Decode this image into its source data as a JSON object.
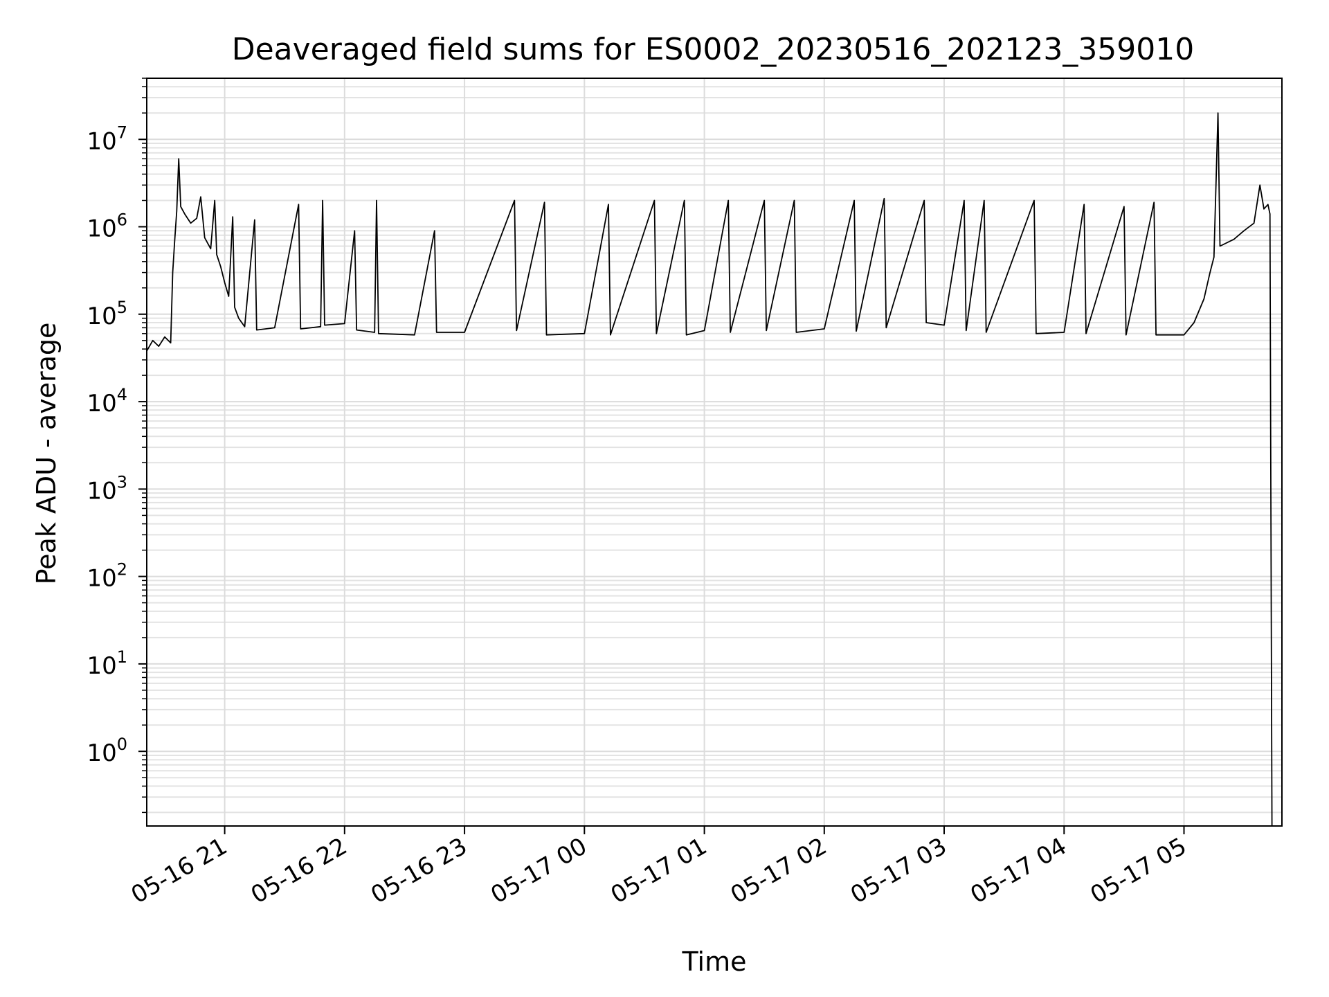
{
  "chart_data": {
    "type": "line",
    "title": "Deaveraged field sums for ES0002_20230516_202123_359010",
    "xlabel": "Time",
    "ylabel": "Peak ADU - average",
    "y_scale": "log",
    "ylim": [
      0.14,
      50000000
    ],
    "xlim": [
      "2023-05-16 20:21",
      "2023-05-17 05:49"
    ],
    "grid": true,
    "x_ticks": [
      {
        "t": "2023-05-16 21:00",
        "label": "05-16 21"
      },
      {
        "t": "2023-05-16 22:00",
        "label": "05-16 22"
      },
      {
        "t": "2023-05-16 23:00",
        "label": "05-16 23"
      },
      {
        "t": "2023-05-17 00:00",
        "label": "05-17 00"
      },
      {
        "t": "2023-05-17 01:00",
        "label": "05-17 01"
      },
      {
        "t": "2023-05-17 02:00",
        "label": "05-17 02"
      },
      {
        "t": "2023-05-17 03:00",
        "label": "05-17 03"
      },
      {
        "t": "2023-05-17 04:00",
        "label": "05-17 04"
      },
      {
        "t": "2023-05-17 05:00",
        "label": "05-17 05"
      }
    ],
    "y_ticks": [
      {
        "value": 1,
        "base": "10",
        "exp": "0"
      },
      {
        "value": 10,
        "base": "10",
        "exp": "1"
      },
      {
        "value": 100,
        "base": "10",
        "exp": "2"
      },
      {
        "value": 1000,
        "base": "10",
        "exp": "3"
      },
      {
        "value": 10000,
        "base": "10",
        "exp": "4"
      },
      {
        "value": 100000,
        "base": "10",
        "exp": "5"
      },
      {
        "value": 1000000,
        "base": "10",
        "exp": "6"
      },
      {
        "value": 10000000,
        "base": "10",
        "exp": "7"
      }
    ],
    "series": [
      {
        "color": "#000000",
        "points": [
          [
            "2023-05-16 20:21",
            38000
          ],
          [
            "2023-05-16 20:24",
            50000
          ],
          [
            "2023-05-16 20:27",
            43000
          ],
          [
            "2023-05-16 20:30",
            55000
          ],
          [
            "2023-05-16 20:33",
            47000
          ],
          [
            "2023-05-16 20:34",
            300000
          ],
          [
            "2023-05-16 20:35",
            700000
          ],
          [
            "2023-05-16 20:36",
            1500000
          ],
          [
            "2023-05-16 20:37",
            6000000
          ],
          [
            "2023-05-16 20:38",
            1700000
          ],
          [
            "2023-05-16 20:40",
            1400000
          ],
          [
            "2023-05-16 20:43",
            1100000
          ],
          [
            "2023-05-16 20:46",
            1250000
          ],
          [
            "2023-05-16 20:48",
            2200000
          ],
          [
            "2023-05-16 20:50",
            750000
          ],
          [
            "2023-05-16 20:53",
            560000
          ],
          [
            "2023-05-16 20:55",
            2000000
          ],
          [
            "2023-05-16 20:56",
            480000
          ],
          [
            "2023-05-16 20:58",
            350000
          ],
          [
            "2023-05-16 21:00",
            230000
          ],
          [
            "2023-05-16 21:02",
            160000
          ],
          [
            "2023-05-16 21:04",
            1300000
          ],
          [
            "2023-05-16 21:05",
            120000
          ],
          [
            "2023-05-16 21:07",
            90000
          ],
          [
            "2023-05-16 21:10",
            72000
          ],
          [
            "2023-05-16 21:15",
            1200000
          ],
          [
            "2023-05-16 21:16",
            66000
          ],
          [
            "2023-05-16 21:25",
            70000
          ],
          [
            "2023-05-16 21:37",
            1800000
          ],
          [
            "2023-05-16 21:38",
            68000
          ],
          [
            "2023-05-16 21:48",
            72000
          ],
          [
            "2023-05-16 21:49",
            2000000
          ],
          [
            "2023-05-16 21:50",
            75000
          ],
          [
            "2023-05-16 22:00",
            78000
          ],
          [
            "2023-05-16 22:05",
            900000
          ],
          [
            "2023-05-16 22:06",
            66000
          ],
          [
            "2023-05-16 22:15",
            62000
          ],
          [
            "2023-05-16 22:16",
            2000000
          ],
          [
            "2023-05-16 22:17",
            60000
          ],
          [
            "2023-05-16 22:35",
            58000
          ],
          [
            "2023-05-16 22:45",
            900000
          ],
          [
            "2023-05-16 22:46",
            62000
          ],
          [
            "2023-05-16 23:00",
            62000
          ],
          [
            "2023-05-16 23:25",
            2000000
          ],
          [
            "2023-05-16 23:26",
            65000
          ],
          [
            "2023-05-16 23:40",
            1900000
          ],
          [
            "2023-05-16 23:41",
            58000
          ],
          [
            "2023-05-17 00:00",
            60000
          ],
          [
            "2023-05-17 00:12",
            1800000
          ],
          [
            "2023-05-17 00:13",
            58000
          ],
          [
            "2023-05-17 00:35",
            2000000
          ],
          [
            "2023-05-17 00:36",
            60000
          ],
          [
            "2023-05-17 00:50",
            2000000
          ],
          [
            "2023-05-17 00:51",
            58000
          ],
          [
            "2023-05-17 01:00",
            65000
          ],
          [
            "2023-05-17 01:12",
            2000000
          ],
          [
            "2023-05-17 01:13",
            62000
          ],
          [
            "2023-05-17 01:30",
            2000000
          ],
          [
            "2023-05-17 01:31",
            65000
          ],
          [
            "2023-05-17 01:45",
            2000000
          ],
          [
            "2023-05-17 01:46",
            62000
          ],
          [
            "2023-05-17 02:00",
            68000
          ],
          [
            "2023-05-17 02:15",
            2000000
          ],
          [
            "2023-05-17 02:16",
            64000
          ],
          [
            "2023-05-17 02:30",
            2100000
          ],
          [
            "2023-05-17 02:31",
            70000
          ],
          [
            "2023-05-17 02:50",
            2000000
          ],
          [
            "2023-05-17 02:51",
            80000
          ],
          [
            "2023-05-17 03:00",
            75000
          ],
          [
            "2023-05-17 03:10",
            2000000
          ],
          [
            "2023-05-17 03:11",
            65000
          ],
          [
            "2023-05-17 03:20",
            2000000
          ],
          [
            "2023-05-17 03:21",
            62000
          ],
          [
            "2023-05-17 03:45",
            2000000
          ],
          [
            "2023-05-17 03:46",
            60000
          ],
          [
            "2023-05-17 04:00",
            62000
          ],
          [
            "2023-05-17 04:10",
            1800000
          ],
          [
            "2023-05-17 04:11",
            60000
          ],
          [
            "2023-05-17 04:30",
            1700000
          ],
          [
            "2023-05-17 04:31",
            58000
          ],
          [
            "2023-05-17 04:45",
            1900000
          ],
          [
            "2023-05-17 04:46",
            58000
          ],
          [
            "2023-05-17 05:00",
            58000
          ],
          [
            "2023-05-17 05:05",
            80000
          ],
          [
            "2023-05-17 05:10",
            150000
          ],
          [
            "2023-05-17 05:13",
            300000
          ],
          [
            "2023-05-17 05:15",
            450000
          ],
          [
            "2023-05-17 05:17",
            20000000
          ],
          [
            "2023-05-17 05:18",
            600000
          ],
          [
            "2023-05-17 05:25",
            720000
          ],
          [
            "2023-05-17 05:30",
            900000
          ],
          [
            "2023-05-17 05:35",
            1100000
          ],
          [
            "2023-05-17 05:38",
            3000000
          ],
          [
            "2023-05-17 05:40",
            1600000
          ],
          [
            "2023-05-17 05:42",
            1800000
          ],
          [
            "2023-05-17 05:43",
            1400000
          ],
          [
            "2023-05-17 05:44",
            0.14
          ]
        ]
      }
    ]
  }
}
